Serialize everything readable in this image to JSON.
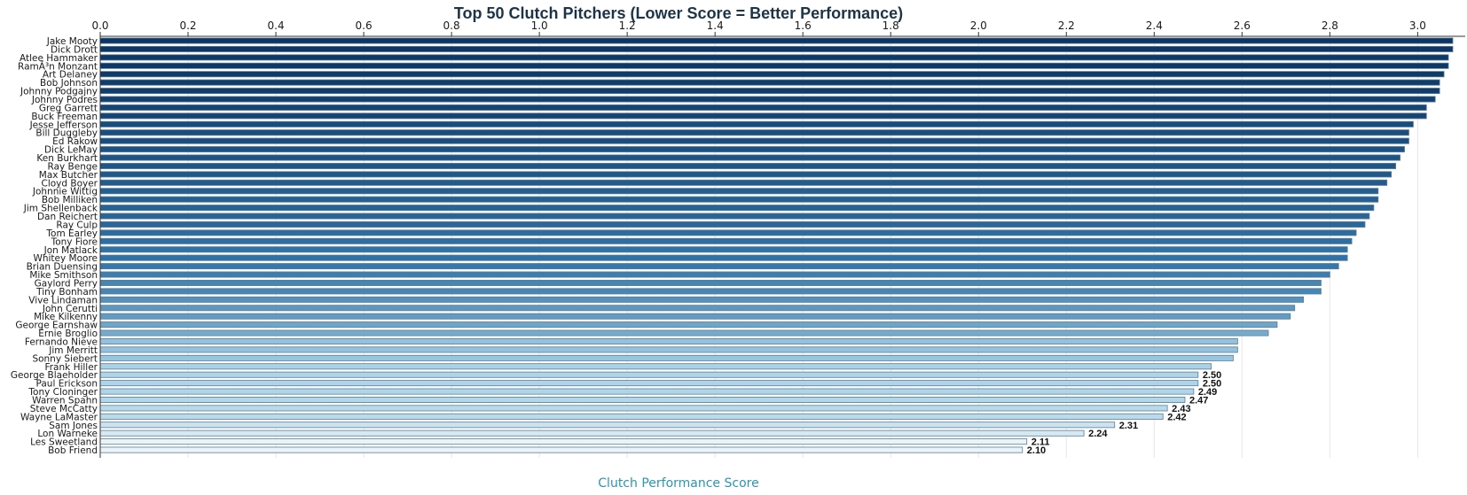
{
  "chart_data": {
    "type": "bar",
    "orientation": "horizontal",
    "title": "Top 50 Clutch Pitchers (Lower Score = Better Performance)",
    "xlabel": "Clutch Performance Score",
    "ylabel": "",
    "xlim": [
      0,
      3.08
    ],
    "xticks": [
      "0.0",
      "0.2",
      "0.4",
      "0.6",
      "0.8",
      "1.0",
      "1.2",
      "1.4",
      "1.6",
      "1.8",
      "2.0",
      "2.2",
      "2.4",
      "2.6",
      "2.8",
      "3.0"
    ],
    "x_axis_position": "top",
    "grid": true,
    "legend": "none",
    "colors": {
      "dark": "#0d3565",
      "mid": "#2f73a8",
      "light": "#a8d1e7",
      "lightest": "#eaf4f8",
      "stroke": "#5a7d95"
    },
    "categories": [
      "Jake Mooty",
      "Dick Drott",
      "Atlee Hammaker",
      "RamÃ³n Monzant",
      "Art Delaney",
      "Bob Johnson",
      "Johnny Podgajny",
      "Johnny Podres",
      "Greg Garrett",
      "Buck Freeman",
      "Jesse Jefferson",
      "Bill Duggleby",
      "Ed Rakow",
      "Dick LeMay",
      "Ken Burkhart",
      "Ray Benge",
      "Max Butcher",
      "Cloyd Boyer",
      "Johnnie Wittig",
      "Bob Milliken",
      "Jim Shellenback",
      "Dan Reichert",
      "Ray Culp",
      "Tom Earley",
      "Tony Fiore",
      "Jon Matlack",
      "Whitey Moore",
      "Brian Duensing",
      "Mike Smithson",
      "Gaylord Perry",
      "Tiny Bonham",
      "Vive Lindaman",
      "John Cerutti",
      "Mike Kilkenny",
      "George Earnshaw",
      "Ernie Broglio",
      "Fernando Nieve",
      "Jim Merritt",
      "Sonny Siebert",
      "Frank Hiller",
      "George Blaeholder",
      "Paul Erickson",
      "Tony Cloninger",
      "Warren Spahn",
      "Steve McCatty",
      "Wayne LaMaster",
      "Sam Jones",
      "Lon Warneke",
      "Les Sweetland",
      "Bob Friend"
    ],
    "values": [
      3.08,
      3.08,
      3.07,
      3.07,
      3.06,
      3.05,
      3.05,
      3.04,
      3.02,
      3.02,
      2.99,
      2.98,
      2.98,
      2.97,
      2.96,
      2.95,
      2.94,
      2.93,
      2.91,
      2.91,
      2.9,
      2.89,
      2.88,
      2.86,
      2.85,
      2.84,
      2.84,
      2.82,
      2.8,
      2.78,
      2.78,
      2.74,
      2.72,
      2.71,
      2.68,
      2.66,
      2.59,
      2.59,
      2.58,
      2.53,
      2.5,
      2.5,
      2.49,
      2.47,
      2.43,
      2.42,
      2.31,
      2.24,
      2.11,
      2.1
    ],
    "data_labels": [
      "",
      "",
      "",
      "",
      "",
      "",
      "",
      "",
      "",
      "",
      "",
      "",
      "",
      "",
      "",
      "",
      "",
      "",
      "",
      "",
      "",
      "",
      "",
      "",
      "",
      "",
      "",
      "",
      "",
      "",
      "",
      "",
      "",
      "",
      "",
      "",
      "",
      "",
      "",
      "",
      "2.50",
      "2.50",
      "2.49",
      "2.47",
      "2.43",
      "2.42",
      "2.31",
      "2.24",
      "2.11",
      "2.10"
    ]
  }
}
